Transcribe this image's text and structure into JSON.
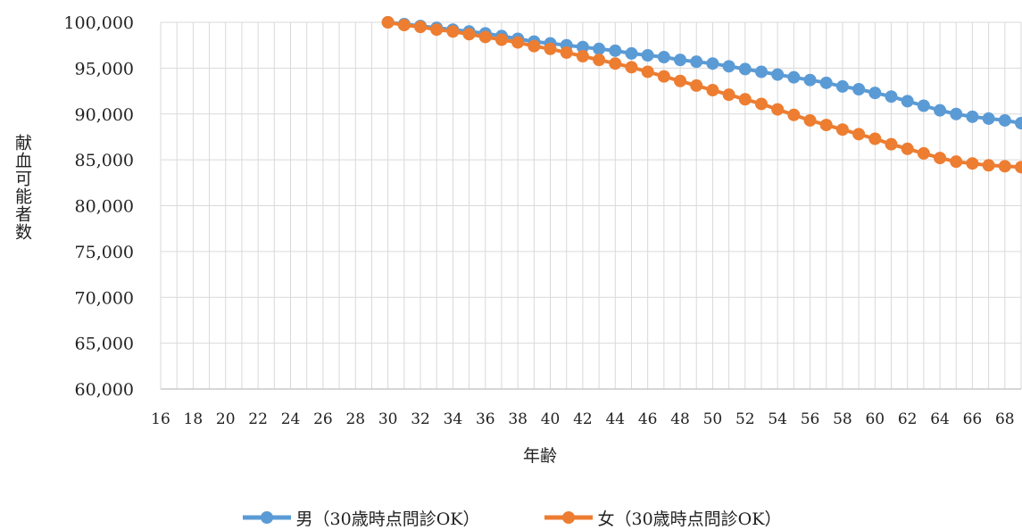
{
  "chart_data": {
    "type": "line",
    "title": "",
    "xlabel": "年齢",
    "ylabel": "献血可能者数",
    "x_tick_labels": [
      "16",
      "18",
      "20",
      "22",
      "24",
      "26",
      "28",
      "30",
      "32",
      "34",
      "36",
      "38",
      "40",
      "42",
      "44",
      "46",
      "48",
      "50",
      "52",
      "54",
      "56",
      "58",
      "60",
      "62",
      "64",
      "66",
      "68"
    ],
    "xlim": [
      16,
      69
    ],
    "ylim": [
      60000,
      100000
    ],
    "y_tick_labels": [
      "60,000",
      "65,000",
      "70,000",
      "75,000",
      "80,000",
      "85,000",
      "90,000",
      "95,000",
      "100,000"
    ],
    "grid": true,
    "legend_position": "bottom",
    "x": [
      30,
      31,
      32,
      33,
      34,
      35,
      36,
      37,
      38,
      39,
      40,
      41,
      42,
      43,
      44,
      45,
      46,
      47,
      48,
      49,
      50,
      51,
      52,
      53,
      54,
      55,
      56,
      57,
      58,
      59,
      60,
      61,
      62,
      63,
      64,
      65,
      66,
      67,
      68,
      69
    ],
    "series": [
      {
        "name": "男（30歳時点問診OK）",
        "color": "#5B9BD5",
        "values": [
          100000,
          99800,
          99600,
          99400,
          99200,
          99000,
          98800,
          98500,
          98200,
          97900,
          97700,
          97500,
          97300,
          97100,
          96900,
          96600,
          96400,
          96200,
          95900,
          95700,
          95500,
          95200,
          94900,
          94600,
          94300,
          94000,
          93700,
          93400,
          93000,
          92700,
          92300,
          91900,
          91400,
          90900,
          90400,
          90000,
          89700,
          89500,
          89300,
          89000
        ]
      },
      {
        "name": "女（30歳時点問診OK）",
        "color": "#ED7D31",
        "values": [
          100000,
          99700,
          99500,
          99200,
          99000,
          98700,
          98400,
          98100,
          97800,
          97400,
          97100,
          96700,
          96300,
          95900,
          95500,
          95100,
          94600,
          94100,
          93600,
          93100,
          92600,
          92100,
          91600,
          91100,
          90500,
          89900,
          89300,
          88800,
          88300,
          87800,
          87300,
          86700,
          86200,
          85700,
          85200,
          84800,
          84600,
          84400,
          84300,
          84200
        ]
      }
    ]
  }
}
